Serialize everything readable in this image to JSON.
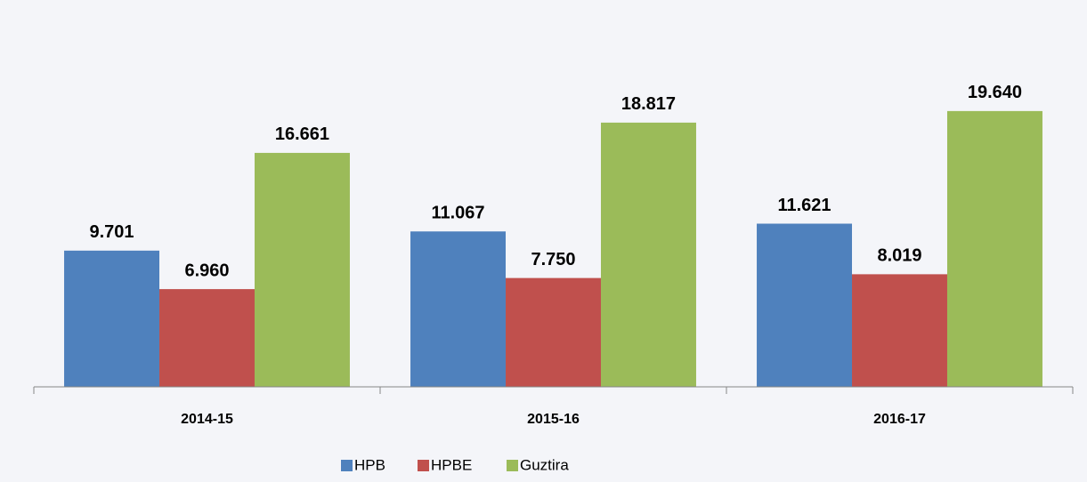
{
  "chart_data": {
    "type": "bar",
    "categories": [
      "2014-15",
      "2015-16",
      "2016-17"
    ],
    "series": [
      {
        "name": "HPB",
        "color": "#4f81bd",
        "values": [
          9701,
          11067,
          11621
        ],
        "value_labels": [
          "9.701",
          "11.067",
          "11.621"
        ]
      },
      {
        "name": "HPBE",
        "color": "#c0504d",
        "values": [
          6960,
          7750,
          8019
        ],
        "value_labels": [
          "6.960",
          "7.750",
          "8.019"
        ]
      },
      {
        "name": "Guztira",
        "color": "#9bbb59",
        "values": [
          16661,
          18817,
          19640
        ],
        "value_labels": [
          "16.661",
          "18.817",
          "19.640"
        ]
      }
    ],
    "ylim": [
      0,
      25000
    ],
    "legend": "bottom"
  }
}
